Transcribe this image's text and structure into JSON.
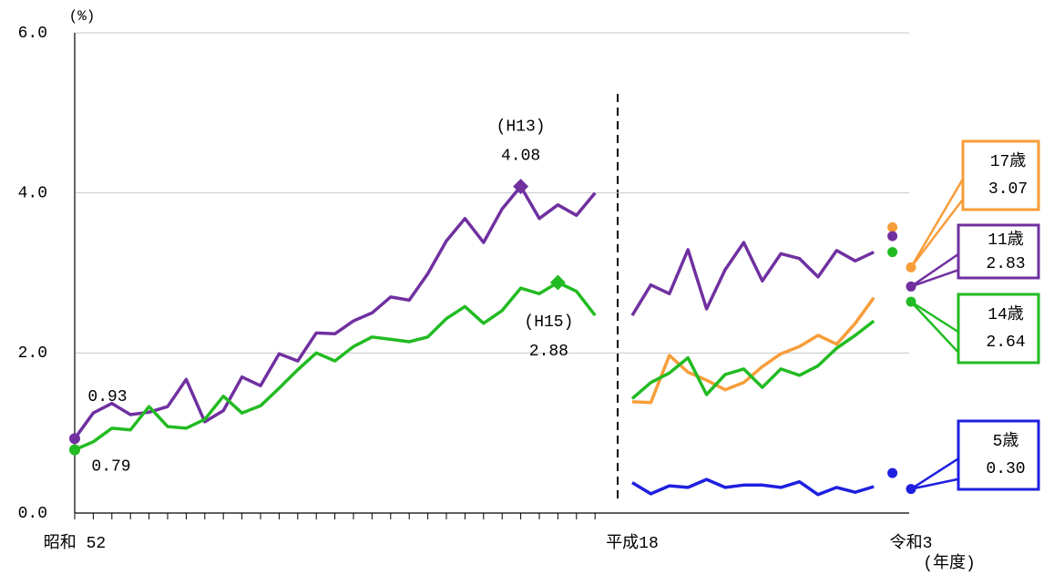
{
  "chart_data": {
    "type": "line",
    "y_unit": "(%)",
    "x_unit": "(年度)",
    "ylim": [
      0,
      6
    ],
    "yticks": [
      {
        "value": 0,
        "label": "0.0"
      },
      {
        "value": 2,
        "label": "2.0"
      },
      {
        "value": 4,
        "label": "4.0"
      },
      {
        "value": 6,
        "label": "6.0"
      }
    ],
    "grid": true,
    "categories": [
      "昭和 52",
      null,
      null,
      null,
      null,
      null,
      null,
      null,
      null,
      null,
      null,
      null,
      null,
      null,
      null,
      null,
      null,
      null,
      null,
      null,
      null,
      null,
      null,
      null,
      null,
      null,
      null,
      null,
      null,
      null,
      "平成18",
      null,
      null,
      null,
      null,
      null,
      null,
      null,
      null,
      null,
      null,
      null,
      null,
      null,
      null,
      "令和3"
    ],
    "series": [
      {
        "name": "17歳",
        "color": "#f79d3a",
        "values": [
          null,
          null,
          null,
          null,
          null,
          null,
          null,
          null,
          null,
          null,
          null,
          null,
          null,
          null,
          null,
          null,
          null,
          null,
          null,
          null,
          null,
          null,
          null,
          null,
          null,
          null,
          null,
          null,
          null,
          null,
          1.39,
          1.38,
          1.97,
          1.76,
          1.66,
          1.54,
          1.63,
          1.83,
          1.99,
          2.08,
          2.22,
          2.11,
          2.37,
          2.69,
          null,
          null
        ],
        "dot_values": {
          "44": 3.57,
          "45": 3.07
        },
        "dot_labels": {
          "45": "3.07"
        }
      },
      {
        "name": "11歳",
        "color": "#7030a0",
        "values": [
          0.93,
          1.25,
          1.37,
          1.23,
          1.26,
          1.33,
          1.67,
          1.14,
          1.28,
          1.7,
          1.59,
          1.99,
          1.9,
          2.25,
          2.24,
          2.4,
          2.5,
          2.7,
          2.66,
          2.99,
          3.4,
          3.68,
          3.38,
          3.8,
          4.08,
          3.68,
          3.85,
          3.72,
          4.0,
          null,
          2.47,
          2.85,
          2.74,
          3.29,
          2.55,
          3.04,
          3.38,
          2.9,
          3.24,
          3.18,
          2.95,
          3.28,
          3.15,
          3.26,
          null,
          null
        ],
        "value_labels": {
          "0": "0.93",
          "24": "4.08"
        },
        "notes": {
          "24": "(H13)"
        },
        "dot_values": {
          "44": 3.46,
          "45": 2.83
        },
        "dot_labels": {
          "45": "2.83"
        }
      },
      {
        "name": "14歳",
        "color": "#22bb22",
        "values": [
          0.79,
          0.89,
          1.06,
          1.04,
          1.33,
          1.08,
          1.06,
          1.17,
          1.46,
          1.25,
          1.34,
          1.56,
          1.79,
          2.0,
          1.9,
          2.08,
          2.2,
          2.17,
          2.14,
          2.2,
          2.43,
          2.58,
          2.37,
          2.53,
          2.81,
          2.74,
          2.88,
          2.77,
          2.47,
          null,
          1.43,
          1.63,
          1.75,
          1.94,
          1.48,
          1.73,
          1.8,
          1.57,
          1.8,
          1.72,
          1.84,
          2.06,
          2.22,
          2.4,
          null,
          null
        ],
        "value_labels": {
          "0": "0.79",
          "26": "2.88"
        },
        "notes": {
          "26": "(H15)"
        },
        "dot_values": {
          "44": 3.26,
          "45": 2.64
        },
        "dot_labels": {
          "45": "2.64"
        }
      },
      {
        "name": "5歳",
        "color": "#1f1fe0",
        "values": [
          null,
          null,
          null,
          null,
          null,
          null,
          null,
          null,
          null,
          null,
          null,
          null,
          null,
          null,
          null,
          null,
          null,
          null,
          null,
          null,
          null,
          null,
          null,
          null,
          null,
          null,
          null,
          null,
          null,
          null,
          0.38,
          0.24,
          0.34,
          0.32,
          0.42,
          0.32,
          0.35,
          0.35,
          0.32,
          0.39,
          0.23,
          0.32,
          0.26,
          0.33,
          null,
          null
        ],
        "dot_values": {
          "44": 0.5,
          "45": 0.3
        },
        "dot_labels": {
          "45": "0.30"
        }
      }
    ]
  }
}
